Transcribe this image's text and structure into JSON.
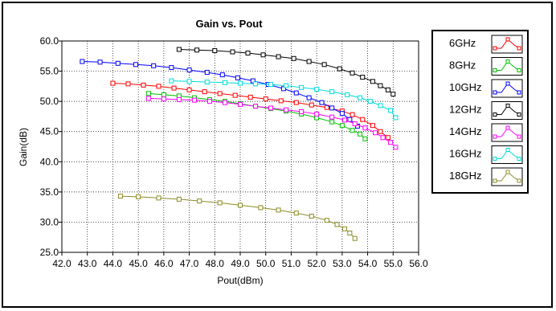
{
  "chart_data": {
    "type": "line",
    "title": "Gain vs. Pout",
    "xlabel": "Pout(dBm)",
    "ylabel": "Gain(dB)",
    "xlim": [
      42.0,
      56.0
    ],
    "ylim": [
      25.0,
      60.0
    ],
    "x_ticks": [
      "42.0",
      "43.0",
      "44.0",
      "45.0",
      "46.0",
      "47.0",
      "48.0",
      "49.0",
      "50.0",
      "51.0",
      "52.0",
      "53.0",
      "54.0",
      "55.0",
      "56.0"
    ],
    "y_ticks": [
      "25.0",
      "30.0",
      "35.0",
      "40.0",
      "45.0",
      "50.0",
      "55.0",
      "60.0"
    ],
    "grid": true,
    "legend_position": "right",
    "marker": "open-square",
    "series": [
      {
        "name": "6GHz",
        "color": "#ff0000",
        "x": [
          44.0,
          44.6,
          45.2,
          45.8,
          46.4,
          47.0,
          47.6,
          48.2,
          48.8,
          49.4,
          50.0,
          50.6,
          51.2,
          51.8,
          52.4,
          53.0,
          53.4,
          53.8,
          54.2,
          54.5,
          54.8
        ],
        "y": [
          53.0,
          52.9,
          52.7,
          52.5,
          52.2,
          51.9,
          51.6,
          51.3,
          51.0,
          50.7,
          50.4,
          50.1,
          49.8,
          49.4,
          49.0,
          48.4,
          47.8,
          47.0,
          46.0,
          45.0,
          44.0
        ]
      },
      {
        "name": "8GHz",
        "color": "#00c000",
        "x": [
          45.4,
          46.0,
          46.6,
          47.2,
          47.8,
          48.4,
          49.0,
          49.6,
          50.2,
          50.8,
          51.4,
          52.0,
          52.6,
          53.0,
          53.4,
          53.7,
          53.9
        ],
        "y": [
          51.3,
          51.1,
          50.9,
          50.6,
          50.3,
          50.0,
          49.6,
          49.2,
          48.8,
          48.4,
          47.9,
          47.3,
          46.6,
          46.0,
          45.2,
          44.6,
          43.8
        ]
      },
      {
        "name": "10GHz",
        "color": "#0000ff",
        "x": [
          42.8,
          43.5,
          44.2,
          44.9,
          45.6,
          46.3,
          47.0,
          47.7,
          48.3,
          48.9,
          49.5,
          50.1,
          50.7,
          51.2,
          51.7,
          52.2,
          52.6,
          53.0,
          53.3,
          53.6
        ],
        "y": [
          56.6,
          56.5,
          56.3,
          56.1,
          55.9,
          55.6,
          55.2,
          54.8,
          54.4,
          53.9,
          53.4,
          52.8,
          52.1,
          51.4,
          50.6,
          49.8,
          48.9,
          48.0,
          47.0,
          45.9
        ]
      },
      {
        "name": "12GHz",
        "color": "#000000",
        "x": [
          46.6,
          47.3,
          48.0,
          48.7,
          49.3,
          49.9,
          50.5,
          51.1,
          51.7,
          52.3,
          52.9,
          53.4,
          53.8,
          54.2,
          54.5,
          54.8,
          55.0
        ],
        "y": [
          58.6,
          58.5,
          58.4,
          58.2,
          58.0,
          57.7,
          57.4,
          57.1,
          56.6,
          56.1,
          55.4,
          54.7,
          54.0,
          53.3,
          52.6,
          51.9,
          51.2
        ]
      },
      {
        "name": "14GHz",
        "color": "#ff00ff",
        "x": [
          45.4,
          46.0,
          46.6,
          47.2,
          47.8,
          48.4,
          49.0,
          49.6,
          50.2,
          50.8,
          51.4,
          52.0,
          52.6,
          53.1,
          53.5,
          53.9,
          54.3,
          54.6,
          54.9,
          55.1
        ],
        "y": [
          50.5,
          50.4,
          50.3,
          50.2,
          50.0,
          49.8,
          49.5,
          49.2,
          48.9,
          48.6,
          48.3,
          47.9,
          47.4,
          46.9,
          46.3,
          45.6,
          44.8,
          44.0,
          43.2,
          42.4
        ]
      },
      {
        "name": "16GHz",
        "color": "#00dcdc",
        "x": [
          46.3,
          47.0,
          47.7,
          48.4,
          49.0,
          49.6,
          50.2,
          50.8,
          51.4,
          52.0,
          52.6,
          53.2,
          53.7,
          54.1,
          54.5,
          54.9,
          55.1
        ],
        "y": [
          53.4,
          53.3,
          53.2,
          53.1,
          53.0,
          52.9,
          52.8,
          52.6,
          52.3,
          52.0,
          51.6,
          51.1,
          50.6,
          50.0,
          49.3,
          48.5,
          47.3
        ]
      },
      {
        "name": "18GHz",
        "color": "#8c8c28",
        "x": [
          44.3,
          45.0,
          45.8,
          46.6,
          47.4,
          48.2,
          49.0,
          49.8,
          50.5,
          51.2,
          51.8,
          52.4,
          52.8,
          53.1,
          53.3,
          53.5
        ],
        "y": [
          34.3,
          34.2,
          34.0,
          33.8,
          33.5,
          33.2,
          32.8,
          32.4,
          32.0,
          31.5,
          31.0,
          30.3,
          29.6,
          28.9,
          28.2,
          27.3
        ]
      }
    ]
  }
}
